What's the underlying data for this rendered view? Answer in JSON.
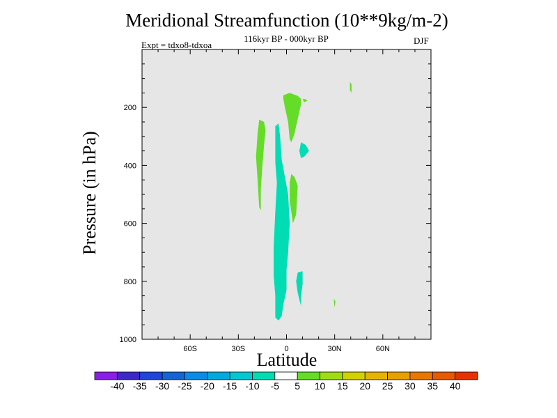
{
  "chart_data": {
    "type": "contour",
    "title": "Meridional Streamfunction (10**9kg/m-2)",
    "subtitle": "116kyr BP - 000kyr BP",
    "experiment": "Expt = tdxo8-tdxoa",
    "season": "DJF",
    "xlabel": "Latitude",
    "ylabel": "Pressure (in hPa)",
    "xlim": [
      -90,
      90
    ],
    "ylim": [
      1000,
      0
    ],
    "x_ticks": [
      "60S",
      "30S",
      "0",
      "30N",
      "60N"
    ],
    "y_ticks": [
      "200",
      "400",
      "600",
      "800",
      "1000"
    ],
    "colorbar": {
      "labels": [
        "-40",
        "-35",
        "-30",
        "-25",
        "-20",
        "-15",
        "-10",
        "-5",
        "5",
        "10",
        "15",
        "20",
        "25",
        "30",
        "35",
        "40"
      ],
      "colors": [
        "#8a1ee6",
        "#3c28c8",
        "#1e46dc",
        "#1464d2",
        "#0a8ce6",
        "#00aadc",
        "#00c8d2",
        "#00dcb4",
        "#ffffff",
        "#64dc28",
        "#a0dc14",
        "#d2d200",
        "#e6b400",
        "#e6a000",
        "#e67800",
        "#e65a00",
        "#e63200"
      ]
    },
    "background_color": "#e6e6e6",
    "regions": [
      {
        "level": "5 to 10",
        "color": "#64dc28",
        "points": [
          [
            -17,
            242
          ],
          [
            -14,
            250
          ],
          [
            -13,
            280
          ],
          [
            -14,
            330
          ],
          [
            -15,
            400
          ],
          [
            -16,
            480
          ],
          [
            -16,
            555
          ],
          [
            -17,
            545
          ],
          [
            -18,
            450
          ],
          [
            -19,
            370
          ],
          [
            -18,
            290
          ]
        ]
      },
      {
        "level": "5 to 10",
        "color": "#64dc28",
        "points": [
          [
            -2,
            158
          ],
          [
            2,
            150
          ],
          [
            7,
            160
          ],
          [
            9,
            170
          ],
          [
            9,
            190
          ],
          [
            7,
            240
          ],
          [
            5,
            290
          ],
          [
            3,
            320
          ],
          [
            2,
            310
          ],
          [
            1,
            250
          ],
          [
            -1,
            200
          ],
          [
            -2,
            170
          ]
        ]
      },
      {
        "level": "5 to 10",
        "color": "#64dc28",
        "points": [
          [
            10,
            170
          ],
          [
            12,
            172
          ],
          [
            13,
            177
          ],
          [
            11,
            182
          ]
        ]
      },
      {
        "level": "5 to 10",
        "color": "#64dc28",
        "points": [
          [
            3,
            430
          ],
          [
            5,
            440
          ],
          [
            7,
            470
          ],
          [
            6,
            570
          ],
          [
            4,
            600
          ],
          [
            2,
            520
          ],
          [
            2,
            460
          ]
        ]
      },
      {
        "level": "5 to 10",
        "color": "#64dc28",
        "points": [
          [
            39.5,
            112
          ],
          [
            40.5,
            120
          ],
          [
            40.5,
            150
          ],
          [
            39.5,
            140
          ]
        ]
      },
      {
        "level": "5 to 10",
        "color": "#64dc28",
        "points": [
          [
            29.5,
            860
          ],
          [
            30.5,
            870
          ],
          [
            29.8,
            890
          ]
        ]
      },
      {
        "level": "-10 to -5",
        "color": "#00dcb4",
        "points": [
          [
            -7,
            265
          ],
          [
            -5,
            255
          ],
          [
            -4,
            300
          ],
          [
            -3,
            380
          ],
          [
            -1,
            440
          ],
          [
            1,
            500
          ],
          [
            2,
            600
          ],
          [
            1,
            700
          ],
          [
            0,
            760
          ],
          [
            0,
            830
          ],
          [
            -2,
            880
          ],
          [
            -3,
            920
          ],
          [
            -5,
            935
          ],
          [
            -7,
            925
          ],
          [
            -7,
            850
          ],
          [
            -8,
            780
          ],
          [
            -8,
            680
          ],
          [
            -7,
            560
          ],
          [
            -6,
            460
          ],
          [
            -7,
            390
          ],
          [
            -7,
            320
          ]
        ]
      },
      {
        "level": "-10 to -5",
        "color": "#00dcb4",
        "points": [
          [
            9,
            320
          ],
          [
            12,
            330
          ],
          [
            14,
            350
          ],
          [
            11,
            370
          ],
          [
            9,
            375
          ],
          [
            8,
            350
          ]
        ]
      },
      {
        "level": "-10 to -5",
        "color": "#00dcb4",
        "points": [
          [
            7,
            770
          ],
          [
            10,
            765
          ],
          [
            10,
            810
          ],
          [
            9,
            850
          ],
          [
            9,
            885
          ],
          [
            7,
            840
          ],
          [
            6,
            800
          ]
        ]
      }
    ]
  }
}
